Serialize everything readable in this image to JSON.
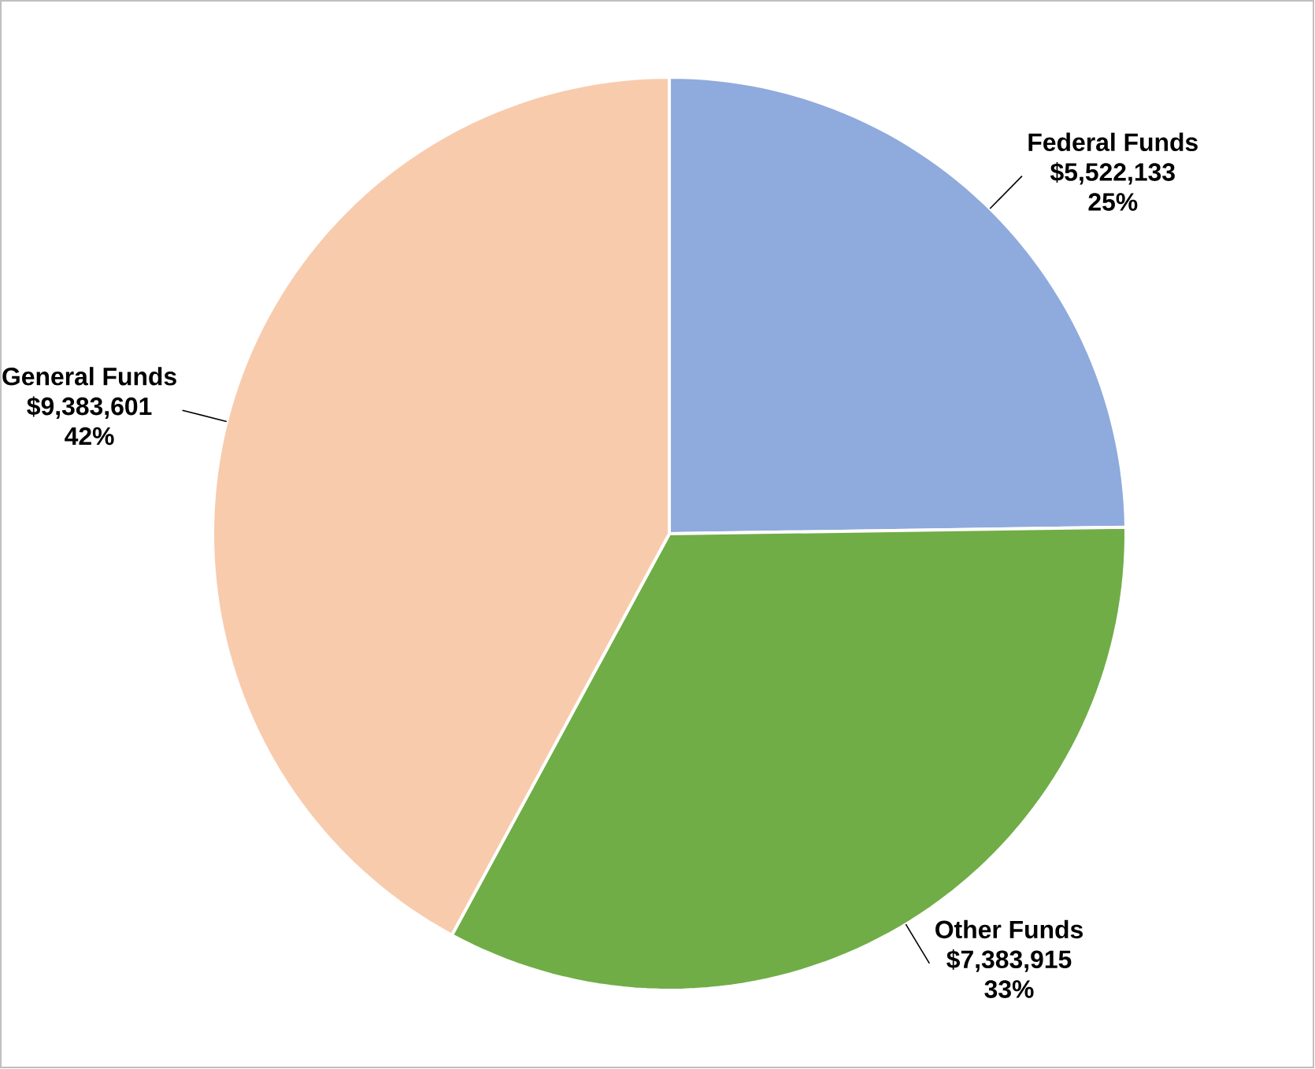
{
  "chart_data": {
    "type": "pie",
    "categories": [
      "Federal Funds",
      "Other Funds",
      "General Funds"
    ],
    "values": [
      5522133,
      7383915,
      9383601
    ],
    "colors": [
      "#8faadc",
      "#70ad47",
      "#f8cbad"
    ],
    "value_labels": [
      "$5,522,133 25%",
      "$7,383,915 33%",
      "$9,383,601 42%"
    ]
  }
}
